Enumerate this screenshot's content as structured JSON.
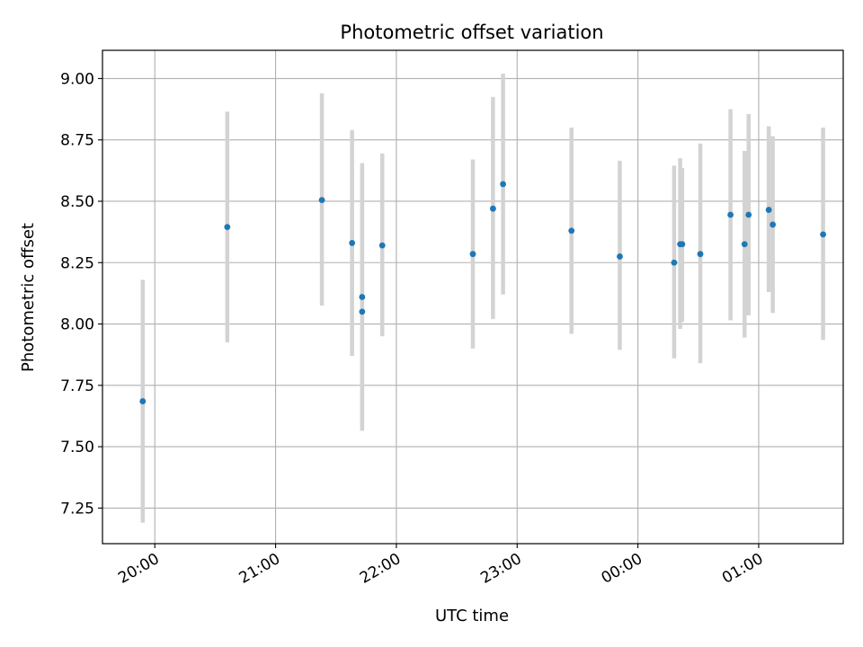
{
  "chart_data": {
    "type": "scatter",
    "title": "Photometric offset variation",
    "xlabel": "UTC time",
    "ylabel": "Photometric offset",
    "x_axis_kind": "time",
    "xlim": [
      "19:34",
      "01:42"
    ],
    "ylim": [
      7.105,
      9.115
    ],
    "grid": true,
    "x_ticks": [
      {
        "label": "20:00",
        "value": "20:00"
      },
      {
        "label": "21:00",
        "value": "21:00"
      },
      {
        "label": "22:00",
        "value": "22:00"
      },
      {
        "label": "23:00",
        "value": "23:00"
      },
      {
        "label": "00:00",
        "value": "00:00"
      },
      {
        "label": "01:00",
        "value": "01:00"
      }
    ],
    "y_ticks": [
      {
        "label": "7.25",
        "value": 7.25
      },
      {
        "label": "7.50",
        "value": 7.5
      },
      {
        "label": "7.75",
        "value": 7.75
      },
      {
        "label": "8.00",
        "value": 8.0
      },
      {
        "label": "8.25",
        "value": 8.25
      },
      {
        "label": "8.50",
        "value": 8.5
      },
      {
        "label": "8.75",
        "value": 8.75
      },
      {
        "label": "9.00",
        "value": 9.0
      }
    ],
    "series": [
      {
        "marker_color": "#1f77b4",
        "errorbar_color": "#d3d3d3",
        "points": [
          {
            "x": "19:54",
            "y": 7.685,
            "ylow": 7.19,
            "yhigh": 8.18
          },
          {
            "x": "20:36",
            "y": 8.395,
            "ylow": 7.925,
            "yhigh": 8.865
          },
          {
            "x": "21:23",
            "y": 8.505,
            "ylow": 8.075,
            "yhigh": 8.94
          },
          {
            "x": "21:38",
            "y": 8.33,
            "ylow": 7.87,
            "yhigh": 8.79
          },
          {
            "x": "21:43",
            "y": 8.11,
            "ylow": 7.61,
            "yhigh": 8.61
          },
          {
            "x": "21:43",
            "y": 8.05,
            "ylow": 7.565,
            "yhigh": 8.655
          },
          {
            "x": "21:53",
            "y": 8.32,
            "ylow": 7.95,
            "yhigh": 8.695
          },
          {
            "x": "22:38",
            "y": 8.285,
            "ylow": 7.9,
            "yhigh": 8.67
          },
          {
            "x": "22:48",
            "y": 8.47,
            "ylow": 8.02,
            "yhigh": 8.925
          },
          {
            "x": "22:53",
            "y": 8.57,
            "ylow": 8.12,
            "yhigh": 9.02
          },
          {
            "x": "23:27",
            "y": 8.38,
            "ylow": 7.96,
            "yhigh": 8.8
          },
          {
            "x": "23:51",
            "y": 8.275,
            "ylow": 7.895,
            "yhigh": 8.665
          },
          {
            "x": "00:18",
            "y": 8.25,
            "ylow": 7.86,
            "yhigh": 8.645
          },
          {
            "x": "00:21",
            "y": 8.325,
            "ylow": 7.98,
            "yhigh": 8.675
          },
          {
            "x": "00:22",
            "y": 8.325,
            "ylow": 8.01,
            "yhigh": 8.635
          },
          {
            "x": "00:31",
            "y": 8.285,
            "ylow": 7.84,
            "yhigh": 8.735
          },
          {
            "x": "00:46",
            "y": 8.445,
            "ylow": 8.015,
            "yhigh": 8.875
          },
          {
            "x": "00:53",
            "y": 8.325,
            "ylow": 7.945,
            "yhigh": 8.705
          },
          {
            "x": "00:55",
            "y": 8.445,
            "ylow": 8.035,
            "yhigh": 8.855
          },
          {
            "x": "01:05",
            "y": 8.465,
            "ylow": 8.13,
            "yhigh": 8.805
          },
          {
            "x": "01:07",
            "y": 8.405,
            "ylow": 8.045,
            "yhigh": 8.765
          },
          {
            "x": "01:32",
            "y": 8.365,
            "ylow": 7.935,
            "yhigh": 8.8
          }
        ]
      }
    ]
  }
}
